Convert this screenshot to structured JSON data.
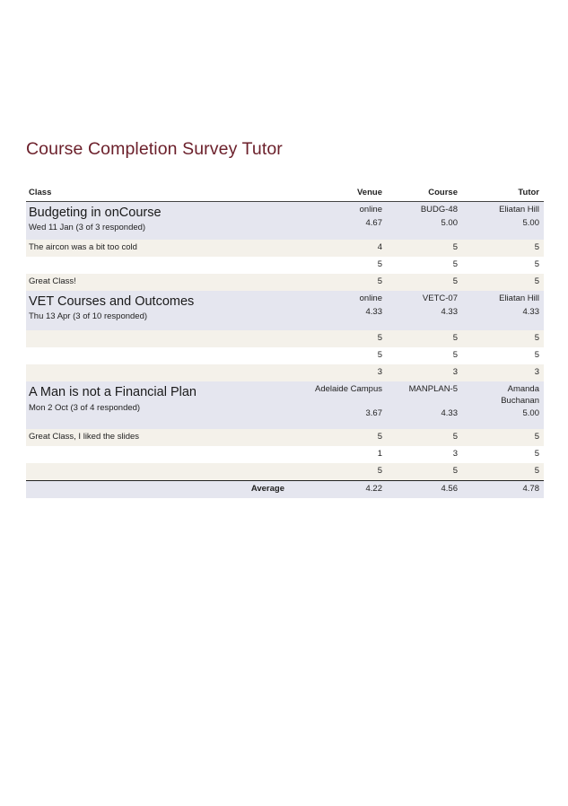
{
  "report": {
    "title": "Course Completion Survey Tutor"
  },
  "headers": {
    "class": "Class",
    "venue": "Venue",
    "course": "Course",
    "tutor": "Tutor"
  },
  "groups": [
    {
      "name": "Budgeting in onCourse",
      "date": "Wed 11 Jan (3 of 3 responded)",
      "venue": "online",
      "venue_score": "4.67",
      "course": "BUDG-48",
      "course_score": "5.00",
      "tutor": "Eliatan Hill",
      "tutor_score": "5.00",
      "responses": [
        {
          "comment": "The aircon was a bit too cold",
          "venue": "4",
          "course": "5",
          "tutor": "5"
        },
        {
          "comment": "",
          "venue": "5",
          "course": "5",
          "tutor": "5"
        },
        {
          "comment": "Great Class!",
          "venue": "5",
          "course": "5",
          "tutor": "5"
        }
      ]
    },
    {
      "name": "VET Courses and Outcomes",
      "date": "Thu 13 Apr (3 of 10 responded)",
      "venue": "online",
      "venue_score": "4.33",
      "course": "VETC-07",
      "course_score": "4.33",
      "tutor": "Eliatan Hill",
      "tutor_score": "4.33",
      "responses": [
        {
          "comment": "",
          "venue": "5",
          "course": "5",
          "tutor": "5"
        },
        {
          "comment": "",
          "venue": "5",
          "course": "5",
          "tutor": "5"
        },
        {
          "comment": "",
          "venue": "3",
          "course": "3",
          "tutor": "3"
        }
      ]
    },
    {
      "name": "A Man is not a Financial Plan",
      "date": "Mon 2 Oct (3 of 4 responded)",
      "venue": "Adelaide Campus",
      "venue_score": "3.67",
      "course": "MANPLAN-5",
      "course_score": "4.33",
      "tutor": "Amanda Buchanan",
      "tutor_score": "5.00",
      "responses": [
        {
          "comment": "Great Class, I liked the slides",
          "venue": "5",
          "course": "5",
          "tutor": "5"
        },
        {
          "comment": "",
          "venue": "1",
          "course": "3",
          "tutor": "5"
        },
        {
          "comment": "",
          "venue": "5",
          "course": "5",
          "tutor": "5"
        }
      ]
    }
  ],
  "average": {
    "label": "Average",
    "venue": "4.22",
    "course": "4.56",
    "tutor": "4.78"
  }
}
